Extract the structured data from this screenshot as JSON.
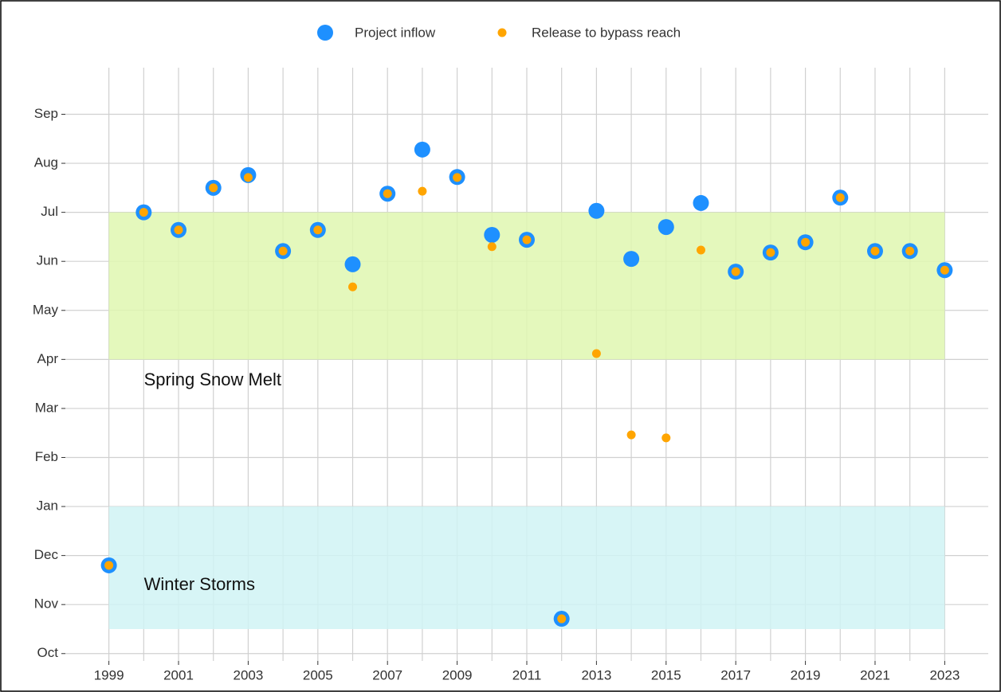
{
  "chart_data": {
    "type": "scatter",
    "x": [
      1999,
      2000,
      2001,
      2002,
      2003,
      2004,
      2005,
      2006,
      2007,
      2008,
      2009,
      2010,
      2011,
      2012,
      2013,
      2014,
      2015,
      2016,
      2017,
      2018,
      2019,
      2020,
      2021,
      2022,
      2023
    ],
    "series": [
      {
        "name": "Project inflow",
        "color": "#1e90ff",
        "values": [
          1.8,
          9.0,
          8.64,
          9.5,
          9.76,
          8.21,
          8.64,
          7.94,
          9.38,
          10.28,
          9.72,
          8.54,
          8.44,
          0.71,
          9.03,
          8.05,
          8.7,
          9.19,
          7.79,
          8.18,
          8.39,
          9.3,
          8.21,
          8.21,
          7.82
        ]
      },
      {
        "name": "Release to bypass reach",
        "color": "#ffa500",
        "values": [
          1.8,
          9.0,
          8.64,
          9.5,
          9.71,
          8.21,
          8.64,
          7.48,
          9.38,
          9.43,
          9.71,
          8.3,
          8.44,
          0.71,
          6.12,
          4.46,
          4.4,
          8.23,
          7.79,
          8.18,
          8.39,
          9.3,
          8.21,
          8.21,
          7.82
        ]
      }
    ],
    "regions": [
      {
        "label": "Spring Snow Melt",
        "x": [
          1999,
          2023
        ],
        "y": [
          6,
          9
        ],
        "color": "#dff7b0"
      },
      {
        "label": "Winter Storms",
        "x": [
          1999,
          2023
        ],
        "y": [
          0.5,
          3
        ],
        "color": "#d0f3f5"
      }
    ],
    "xlim": [
      1997.75,
      2024.25
    ],
    "xticks": [
      1999,
      2001,
      2003,
      2005,
      2007,
      2009,
      2011,
      2013,
      2015,
      2017,
      2019,
      2021,
      2023
    ],
    "x_minor_ticks": [
      2000,
      2002,
      2004,
      2006,
      2008,
      2010,
      2012,
      2014,
      2016,
      2018,
      2020,
      2022
    ],
    "ylim": [
      -0.15,
      11.95
    ],
    "yticks": [
      {
        "value": 0,
        "label": "Oct"
      },
      {
        "value": 1,
        "label": "Nov"
      },
      {
        "value": 2,
        "label": "Dec"
      },
      {
        "value": 3,
        "label": "Jan"
      },
      {
        "value": 4,
        "label": "Feb"
      },
      {
        "value": 5,
        "label": "Mar"
      },
      {
        "value": 6,
        "label": "Apr"
      },
      {
        "value": 7,
        "label": "May"
      },
      {
        "value": 8,
        "label": "Jun"
      },
      {
        "value": 9,
        "label": "Jul"
      },
      {
        "value": 10,
        "label": "Aug"
      },
      {
        "value": 11,
        "label": "Sep"
      }
    ],
    "grid": true,
    "legend": "top"
  }
}
